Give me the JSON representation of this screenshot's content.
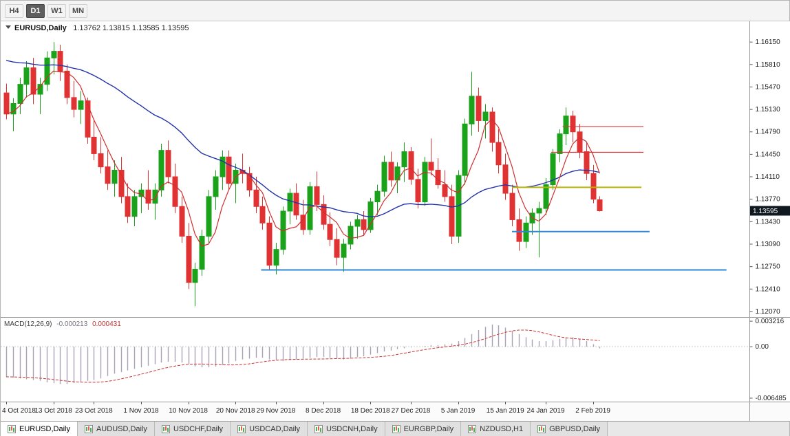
{
  "toolbar": {
    "timeframes": [
      {
        "label": "H4",
        "active": false
      },
      {
        "label": "D1",
        "active": true
      },
      {
        "label": "W1",
        "active": false
      },
      {
        "label": "MN",
        "active": false
      }
    ]
  },
  "chart": {
    "symbol_title": "EURUSD,Daily",
    "ohlc_line": "1.13762 1.13815 1.13585 1.13595",
    "current_price": "1.13595"
  },
  "macd_panel": {
    "name": "MACD(12,26,9)",
    "main_value": "-0.000213",
    "signal_value": "0.000431"
  },
  "tabs": [
    {
      "label": "EURUSD,Daily",
      "active": true
    },
    {
      "label": "AUDUSD,Daily",
      "active": false
    },
    {
      "label": "USDCHF,Daily",
      "active": false
    },
    {
      "label": "USDCAD,Daily",
      "active": false
    },
    {
      "label": "USDCNH,Daily",
      "active": false
    },
    {
      "label": "EURGBP,Daily",
      "active": false
    },
    {
      "label": "NZDUSD,H1",
      "active": false
    },
    {
      "label": "GBPUSD,Daily",
      "active": false
    }
  ],
  "colors": {
    "bull": "#1aa31a",
    "bear": "#e03232",
    "ma_fast": "#cf2e2e",
    "ma_slow": "#2233aa",
    "macd_hist": "#a9a2b4",
    "macd_signal": "#cc3333",
    "price_badge_bg": "#101820",
    "axis_line": "#9a9a9a"
  },
  "chart_data": [
    {
      "type": "candlestick",
      "symbol": "EURUSD",
      "timeframe": "Daily",
      "ylim": [
        1.11986,
        1.16464
      ],
      "y_ticks": [
        "1.16150",
        "1.15810",
        "1.15470",
        "1.15130",
        "1.14790",
        "1.14450",
        "1.14110",
        "1.13770",
        "1.13430",
        "1.13090",
        "1.12750",
        "1.12410",
        "1.12070"
      ],
      "x_labels": [
        {
          "i": 0,
          "label": "4 Oct 2018"
        },
        {
          "i": 7,
          "label": "13 Oct 2018"
        },
        {
          "i": 13,
          "label": "23 Oct 2018"
        },
        {
          "i": 20,
          "label": "1 Nov 2018"
        },
        {
          "i": 27,
          "label": "10 Nov 2018"
        },
        {
          "i": 34,
          "label": "20 Nov 2018"
        },
        {
          "i": 40,
          "label": "29 Nov 2018"
        },
        {
          "i": 47,
          "label": "8 Dec 2018"
        },
        {
          "i": 54,
          "label": "18 Dec 2018"
        },
        {
          "i": 60,
          "label": "27 Dec 2018"
        },
        {
          "i": 67,
          "label": "5 Jan 2019"
        },
        {
          "i": 74,
          "label": "15 Jan 2019"
        },
        {
          "i": 80,
          "label": "24 Jan 2019"
        },
        {
          "i": 87,
          "label": "2 Feb 2019"
        }
      ],
      "ma_fast_period": 5,
      "ma_slow_period": 30,
      "ma_slow_seed": 1.159,
      "hlines": [
        {
          "price": 1.1487,
          "i1": 82.5,
          "i2": 94.5,
          "color": "#d83434",
          "w": 1.2
        },
        {
          "price": 1.1448,
          "i1": 80.8,
          "i2": 94.5,
          "color": "#d83434",
          "w": 1.2
        },
        {
          "price": 1.1395,
          "i1": 75.0,
          "i2": 94.2,
          "color": "#b9b400",
          "w": 2
        },
        {
          "price": 1.1328,
          "i1": 75.0,
          "i2": 95.4,
          "color": "#2e86d6",
          "w": 2
        },
        {
          "price": 1.127,
          "i1": 37.8,
          "i2": 106.8,
          "color": "#2e86d6",
          "w": 2
        }
      ],
      "ohlc": [
        [
          1.1538,
          1.1552,
          1.1498,
          1.1506
        ],
        [
          1.1506,
          1.153,
          1.148,
          1.1522
        ],
        [
          1.1522,
          1.1561,
          1.1506,
          1.1551
        ],
        [
          1.1551,
          1.1586,
          1.1531,
          1.1576
        ],
        [
          1.1576,
          1.1591,
          1.1521,
          1.1536
        ],
        [
          1.1536,
          1.1561,
          1.1506,
          1.1551
        ],
        [
          1.1551,
          1.1601,
          1.1541,
          1.1591
        ],
        [
          1.1591,
          1.1615,
          1.1566,
          1.1601
        ],
        [
          1.1601,
          1.1611,
          1.1556,
          1.1571
        ],
        [
          1.1571,
          1.1581,
          1.1521,
          1.1531
        ],
        [
          1.1531,
          1.1556,
          1.1501,
          1.1513
        ],
        [
          1.1513,
          1.1541,
          1.1491,
          1.1526
        ],
        [
          1.1526,
          1.1531,
          1.1461,
          1.1471
        ],
        [
          1.1471,
          1.1496,
          1.1436,
          1.1446
        ],
        [
          1.1446,
          1.1471,
          1.1416,
          1.1426
        ],
        [
          1.1426,
          1.1451,
          1.1391,
          1.1401
        ],
        [
          1.1401,
          1.1436,
          1.1381,
          1.1421
        ],
        [
          1.1421,
          1.1441,
          1.1371,
          1.1381
        ],
        [
          1.1381,
          1.1401,
          1.1341,
          1.1351
        ],
        [
          1.1351,
          1.1391,
          1.1336,
          1.1381
        ],
        [
          1.1381,
          1.1401,
          1.1356,
          1.1391
        ],
        [
          1.1391,
          1.1421,
          1.1361,
          1.1371
        ],
        [
          1.1371,
          1.1401,
          1.1346,
          1.1391
        ],
        [
          1.1391,
          1.1461,
          1.1381,
          1.1451
        ],
        [
          1.1451,
          1.1466,
          1.1401,
          1.1411
        ],
        [
          1.1411,
          1.1431,
          1.1356,
          1.1366
        ],
        [
          1.1366,
          1.1381,
          1.1311,
          1.1321
        ],
        [
          1.1321,
          1.1341,
          1.1241,
          1.1251
        ],
        [
          1.1251,
          1.1281,
          1.1215,
          1.1271
        ],
        [
          1.1271,
          1.1331,
          1.1261,
          1.1321
        ],
        [
          1.1321,
          1.1391,
          1.1311,
          1.1381
        ],
        [
          1.1381,
          1.1421,
          1.1361,
          1.1411
        ],
        [
          1.1411,
          1.1451,
          1.1391,
          1.1441
        ],
        [
          1.1441,
          1.1451,
          1.1391,
          1.1401
        ],
        [
          1.1401,
          1.1431,
          1.1371,
          1.1421
        ],
        [
          1.1421,
          1.1446,
          1.1401,
          1.1416
        ],
        [
          1.1416,
          1.1426,
          1.1381,
          1.1391
        ],
        [
          1.1391,
          1.1411,
          1.1356,
          1.1366
        ],
        [
          1.1366,
          1.1381,
          1.1331,
          1.1341
        ],
        [
          1.1341,
          1.1351,
          1.1271,
          1.1277
        ],
        [
          1.1277,
          1.1311,
          1.1263,
          1.1301
        ],
        [
          1.1301,
          1.1366,
          1.1293,
          1.1359
        ],
        [
          1.1359,
          1.1393,
          1.1339,
          1.1386
        ],
        [
          1.1386,
          1.1401,
          1.1346,
          1.1353
        ],
        [
          1.1353,
          1.1376,
          1.1323,
          1.1331
        ],
        [
          1.1331,
          1.1403,
          1.1323,
          1.1396
        ],
        [
          1.1396,
          1.1419,
          1.1359,
          1.1369
        ],
        [
          1.1369,
          1.1383,
          1.1331,
          1.1339
        ],
        [
          1.1339,
          1.1357,
          1.1306,
          1.1316
        ],
        [
          1.1316,
          1.1333,
          1.1277,
          1.1289
        ],
        [
          1.1289,
          1.1317,
          1.1267,
          1.1309
        ],
        [
          1.1309,
          1.1343,
          1.1301,
          1.1336
        ],
        [
          1.1336,
          1.1353,
          1.1317,
          1.1346
        ],
        [
          1.1346,
          1.1359,
          1.1323,
          1.1331
        ],
        [
          1.1331,
          1.1379,
          1.1326,
          1.1373
        ],
        [
          1.1373,
          1.1399,
          1.1353,
          1.1389
        ],
        [
          1.1389,
          1.1443,
          1.1381,
          1.1433
        ],
        [
          1.1433,
          1.1449,
          1.1396,
          1.1406
        ],
        [
          1.1406,
          1.1433,
          1.1386,
          1.1426
        ],
        [
          1.1426,
          1.1463,
          1.1403,
          1.1449
        ],
        [
          1.1449,
          1.1456,
          1.1399,
          1.1407
        ],
        [
          1.1407,
          1.1423,
          1.1363,
          1.1373
        ],
        [
          1.1373,
          1.1441,
          1.1367,
          1.1433
        ],
        [
          1.1433,
          1.1469,
          1.1413,
          1.1421
        ],
        [
          1.1421,
          1.1439,
          1.1393,
          1.1399
        ],
        [
          1.1399,
          1.1421,
          1.1373,
          1.1381
        ],
        [
          1.1381,
          1.1399,
          1.1309,
          1.1321
        ],
        [
          1.1321,
          1.1421,
          1.1311,
          1.1413
        ],
        [
          1.1413,
          1.1499,
          1.1399,
          1.1491
        ],
        [
          1.1491,
          1.157,
          1.1473,
          1.1533
        ],
        [
          1.1533,
          1.1546,
          1.1479,
          1.1496
        ],
        [
          1.1496,
          1.1521,
          1.1469,
          1.1509
        ],
        [
          1.1509,
          1.1516,
          1.1449,
          1.1463
        ],
        [
          1.1463,
          1.1483,
          1.1416,
          1.1429
        ],
        [
          1.1429,
          1.1446,
          1.1376,
          1.1386
        ],
        [
          1.1386,
          1.1399,
          1.1336,
          1.1346
        ],
        [
          1.1346,
          1.1363,
          1.1299,
          1.1313
        ],
        [
          1.1313,
          1.1351,
          1.1303,
          1.1341
        ],
        [
          1.1341,
          1.1363,
          1.1323,
          1.1356
        ],
        [
          1.1356,
          1.1373,
          1.1289,
          1.1363
        ],
        [
          1.1363,
          1.1409,
          1.1353,
          1.1399
        ],
        [
          1.1399,
          1.1453,
          1.1391,
          1.1446
        ],
        [
          1.1446,
          1.1483,
          1.1433,
          1.1476
        ],
        [
          1.1476,
          1.1516,
          1.1459,
          1.1503
        ],
        [
          1.1503,
          1.1511,
          1.1463,
          1.1479
        ],
        [
          1.1479,
          1.1491,
          1.1439,
          1.1449
        ],
        [
          1.1449,
          1.1463,
          1.1406,
          1.1416
        ],
        [
          1.1416,
          1.1429,
          1.1371,
          1.1377
        ],
        [
          1.13762,
          1.13815,
          1.13585,
          1.13595
        ]
      ]
    },
    {
      "type": "bar",
      "name": "MACD(12,26,9)",
      "signal_period": 9,
      "ylim": [
        -0.006923,
        0.00374
      ],
      "y_ticks": [
        {
          "v": 0.003216,
          "label": "0.003216"
        },
        {
          "v": 0,
          "label": "0.00"
        },
        {
          "v": -0.006485,
          "label": "-0.006485"
        }
      ],
      "values": [
        -0.0038,
        -0.0039,
        -0.004,
        -0.0041,
        -0.0042,
        -0.0043,
        -0.0045,
        -0.0046,
        -0.0047,
        -0.0047,
        -0.0046,
        -0.0045,
        -0.0043,
        -0.0042,
        -0.004,
        -0.0037,
        -0.0034,
        -0.0032,
        -0.003,
        -0.0028,
        -0.0026,
        -0.0024,
        -0.0022,
        -0.002,
        -0.0019,
        -0.0019,
        -0.002,
        -0.0022,
        -0.0025,
        -0.0026,
        -0.0026,
        -0.0025,
        -0.0023,
        -0.0021,
        -0.0018,
        -0.0016,
        -0.0015,
        -0.0014,
        -0.0014,
        -0.0016,
        -0.0017,
        -0.0018,
        -0.0017,
        -0.0016,
        -0.0015,
        -0.0014,
        -0.0013,
        -0.0013,
        -0.0014,
        -0.0015,
        -0.0016,
        -0.0015,
        -0.0013,
        -0.0012,
        -0.001,
        -0.0008,
        -0.0006,
        -0.0005,
        -0.0003,
        -0.0002,
        -0.0001,
        0.0,
        0.0001,
        0.0002,
        0.0002,
        0.0003,
        0.0004,
        0.0007,
        0.0011,
        0.0016,
        0.0021,
        0.0025,
        0.0028,
        0.0027,
        0.0024,
        0.002,
        0.0016,
        0.0012,
        0.0009,
        0.0007,
        0.0007,
        0.0008,
        0.001,
        0.0012,
        0.0012,
        0.001,
        0.0007,
        0.0003,
        -0.000213
      ]
    }
  ]
}
